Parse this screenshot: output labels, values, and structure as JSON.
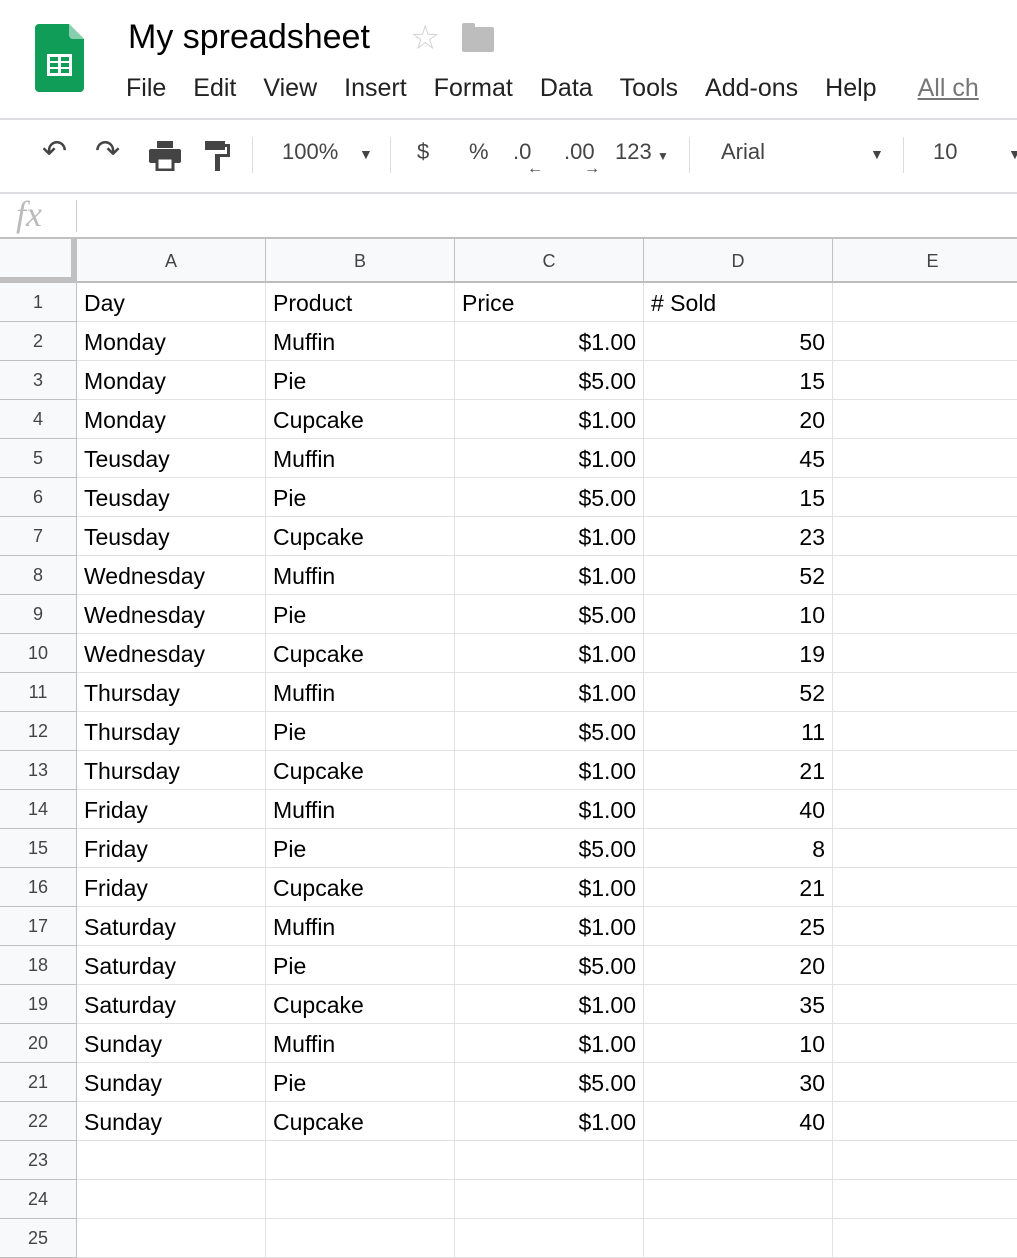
{
  "app": {
    "title": "My spreadsheet",
    "icons": [
      "sheets-logo-icon",
      "star-icon",
      "folder-icon"
    ]
  },
  "menu": [
    "File",
    "Edit",
    "View",
    "Insert",
    "Format",
    "Data",
    "Tools",
    "Add-ons",
    "Help"
  ],
  "menu_all_changes": "All ch",
  "toolbar": {
    "zoom": "100%",
    "currency": "$",
    "percent": "%",
    "dec_decrease": ".0",
    "dec_increase": ".00",
    "more_formats": "123",
    "font": "Arial",
    "font_size": "10"
  },
  "formula_bar": {
    "fx": "fx",
    "value": ""
  },
  "columns": [
    "A",
    "B",
    "C",
    "D",
    "E"
  ],
  "rows": [
    [
      "Day",
      "Product",
      "Price",
      "# Sold"
    ],
    [
      "Monday",
      "Muffin",
      "$1.00",
      "50"
    ],
    [
      "Monday",
      "Pie",
      "$5.00",
      "15"
    ],
    [
      "Monday",
      "Cupcake",
      "$1.00",
      "20"
    ],
    [
      "Teusday",
      "Muffin",
      "$1.00",
      "45"
    ],
    [
      "Teusday",
      "Pie",
      "$5.00",
      "15"
    ],
    [
      "Teusday",
      "Cupcake",
      "$1.00",
      "23"
    ],
    [
      "Wednesday",
      "Muffin",
      "$1.00",
      "52"
    ],
    [
      "Wednesday",
      "Pie",
      "$5.00",
      "10"
    ],
    [
      "Wednesday",
      "Cupcake",
      "$1.00",
      "19"
    ],
    [
      "Thursday",
      "Muffin",
      "$1.00",
      "52"
    ],
    [
      "Thursday",
      "Pie",
      "$5.00",
      "11"
    ],
    [
      "Thursday",
      "Cupcake",
      "$1.00",
      "21"
    ],
    [
      "Friday",
      "Muffin",
      "$1.00",
      "40"
    ],
    [
      "Friday",
      "Pie",
      "$5.00",
      "8"
    ],
    [
      "Friday",
      "Cupcake",
      "$1.00",
      "21"
    ],
    [
      "Saturday",
      "Muffin",
      "$1.00",
      "25"
    ],
    [
      "Saturday",
      "Pie",
      "$5.00",
      "20"
    ],
    [
      "Saturday",
      "Cupcake",
      "$1.00",
      "35"
    ],
    [
      "Sunday",
      "Muffin",
      "$1.00",
      "10"
    ],
    [
      "Sunday",
      "Pie",
      "$5.00",
      "30"
    ],
    [
      "Sunday",
      "Cupcake",
      "$1.00",
      "40"
    ],
    [
      "",
      "",
      "",
      ""
    ],
    [
      "",
      "",
      "",
      ""
    ],
    [
      "",
      "",
      "",
      ""
    ]
  ]
}
